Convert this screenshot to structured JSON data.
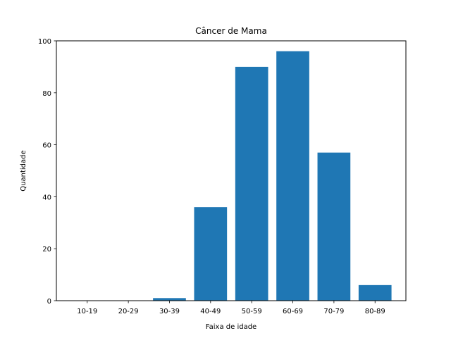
{
  "chart_data": {
    "type": "bar",
    "title": "Câncer de Mama",
    "xlabel": "Faixa de idade",
    "ylabel": "Quantidade",
    "categories": [
      "10-19",
      "20-29",
      "30-39",
      "40-49",
      "50-59",
      "60-69",
      "70-79",
      "80-89"
    ],
    "values": [
      0,
      0,
      1,
      36,
      90,
      96,
      57,
      6
    ],
    "ylim": [
      0,
      100
    ],
    "yticks": [
      "0",
      "20",
      "40",
      "60",
      "80",
      "100"
    ],
    "grid": false,
    "bar_color": "#1f77b4"
  }
}
